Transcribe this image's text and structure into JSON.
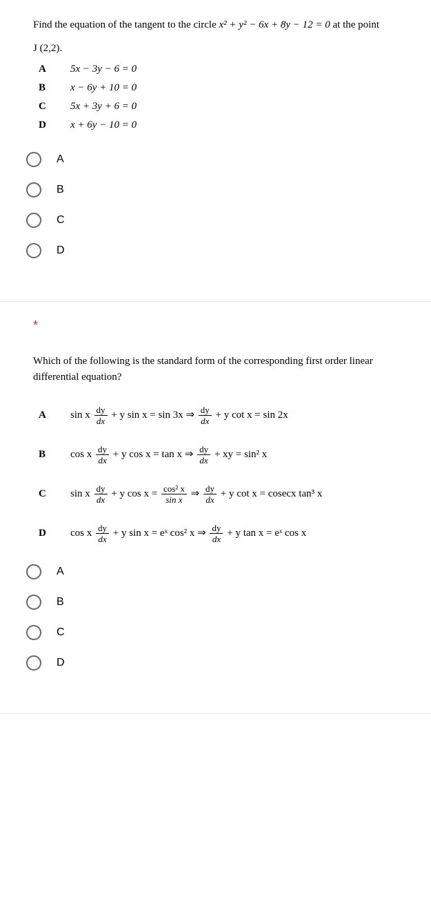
{
  "card1": {
    "prompt_pre": "Find the equation of the tangent to the circle ",
    "prompt_eq": "x² + y² − 6x + 8y − 12 = 0",
    "prompt_mid": " at the point",
    "prompt_point": "J (2,2).",
    "answers": {
      "A": "5x − 3y − 6 = 0",
      "B": "x − 6y + 10 = 0",
      "C": "5x + 3y + 6 = 0",
      "D": "x + 6y − 10 = 0"
    },
    "options": [
      "A",
      "B",
      "C",
      "D"
    ]
  },
  "card2": {
    "star": "*",
    "prompt": "Which of the following is the standard form of the corresponding first order linear differential equation?",
    "answers": {
      "A": {
        "lhs_pre": "sin x ",
        "lhs_post": " + y sin x = sin 3x ⇒ ",
        "rhs_post": " + y cot x = sin 2x"
      },
      "B": {
        "lhs_pre": "cos x ",
        "lhs_post": " + y cos x = tan x ⇒ ",
        "rhs_post": " + xy = sin² x"
      },
      "C": {
        "lhs_pre": "sin x ",
        "lhs_post": " + y cos x = ",
        "mid_num": "cos² x",
        "mid_den": "sin x",
        "arrow": " ⇒ ",
        "rhs_post": " + y cot x = cosecx tan³ x"
      },
      "D": {
        "lhs_pre": "cos x ",
        "lhs_post": " + y sin x = eˣ cos² x ⇒ ",
        "rhs_post": " + y tan x = eˣ cos x"
      }
    },
    "options": [
      "A",
      "B",
      "C",
      "D"
    ],
    "alert": "!"
  },
  "frac": {
    "num": "dy",
    "den": "dx"
  }
}
